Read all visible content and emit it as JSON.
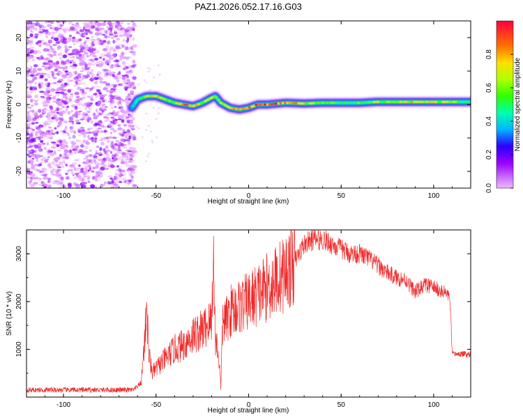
{
  "title": "PAZ1.2026.052.17.16.G03",
  "colors": {
    "snr_line": "#ee2b2b",
    "axis": "#000000",
    "background": "#ffffff"
  },
  "chart_data": [
    {
      "type": "heatmap",
      "name": "spectrogram",
      "title": "PAZ1.2026.052.17.16.G03",
      "xlabel": "Height of straight line (km)",
      "ylabel": "Frequency (Hz)",
      "xlim": [
        -120,
        120
      ],
      "ylim": [
        -25,
        25
      ],
      "xticks": [
        -100,
        -50,
        0,
        50,
        100
      ],
      "yticks": [
        -20,
        -10,
        0,
        10,
        20
      ],
      "colormap": "rainbow (violet to red)",
      "noise_region_x": [
        -120,
        -63
      ],
      "ridge": {
        "x": [
          -63,
          -60,
          -55,
          -50,
          -45,
          -40,
          -35,
          -30,
          -25,
          -20,
          -18,
          -15,
          -10,
          -5,
          0,
          5,
          10,
          20,
          30,
          40,
          50,
          60,
          70,
          80,
          90,
          100,
          110,
          120
        ],
        "freq_hz": [
          -1.0,
          1.5,
          2.5,
          2.5,
          1.5,
          0.5,
          0.0,
          -0.5,
          0.5,
          2.0,
          2.5,
          0.5,
          -1.0,
          -1.5,
          -1.0,
          0.0,
          0.0,
          0.5,
          0.3,
          0.5,
          0.5,
          0.5,
          0.8,
          0.8,
          0.8,
          0.8,
          0.8,
          0.8
        ],
        "amplitude": [
          0.3,
          0.45,
          0.7,
          0.75,
          0.6,
          0.55,
          0.85,
          0.8,
          0.6,
          0.7,
          0.65,
          0.6,
          0.8,
          0.85,
          0.8,
          0.95,
          0.9,
          0.85,
          0.7,
          0.6,
          0.5,
          0.55,
          0.6,
          0.7,
          0.75,
          0.7,
          0.6,
          0.5
        ]
      },
      "colorbar": {
        "label": "Normalized spectral amplitude",
        "range": [
          0.0,
          1.0
        ],
        "ticks": [
          "0.0",
          "0.2",
          "0.4",
          "0.6",
          "0.8"
        ]
      }
    },
    {
      "type": "line",
      "name": "snr",
      "xlabel": "Height of straight line (km)",
      "ylabel": "SNR (10 * v/v)",
      "xlim": [
        -120,
        120
      ],
      "ylim": [
        0,
        3500
      ],
      "xticks": [
        -100,
        -50,
        0,
        50,
        100
      ],
      "yticks": [
        1000,
        2000,
        3000
      ],
      "series": [
        {
          "name": "SNR",
          "x": [
            -120,
            -100,
            -80,
            -62,
            -58,
            -56,
            -55,
            -54,
            -52,
            -50,
            -45,
            -40,
            -35,
            -30,
            -25,
            -20,
            -19,
            -18,
            -16,
            -15,
            -14,
            -12,
            -10,
            -5,
            0,
            10,
            20,
            25,
            30,
            35,
            40,
            45,
            50,
            55,
            60,
            65,
            70,
            75,
            80,
            85,
            90,
            95,
            100,
            105,
            108,
            109,
            110,
            115,
            120
          ],
          "y": [
            150,
            150,
            150,
            150,
            300,
            1300,
            1950,
            900,
            500,
            600,
            800,
            1000,
            1100,
            1300,
            1400,
            1600,
            2900,
            1300,
            800,
            200,
            1600,
            1600,
            1800,
            1900,
            2000,
            2300,
            2600,
            2850,
            3200,
            3300,
            3300,
            3200,
            3100,
            3000,
            3000,
            2900,
            2750,
            2600,
            2500,
            2450,
            2200,
            2350,
            2300,
            2200,
            2150,
            1900,
            900,
            900,
            900
          ]
        }
      ]
    }
  ]
}
